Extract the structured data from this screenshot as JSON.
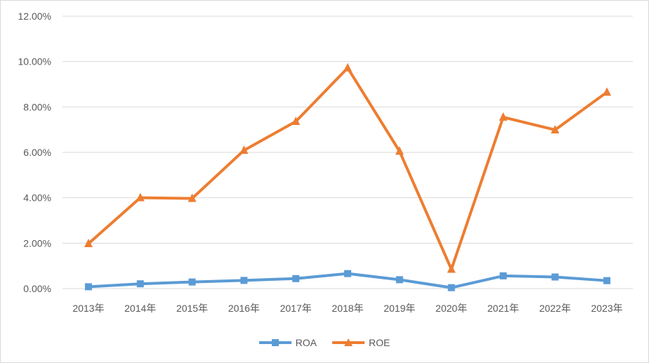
{
  "chart_data": {
    "type": "line",
    "title": "",
    "xlabel": "",
    "ylabel": "",
    "categories": [
      "2013年",
      "2014年",
      "2015年",
      "2016年",
      "2017年",
      "2018年",
      "2019年",
      "2020年",
      "2021年",
      "2022年",
      "2023年"
    ],
    "ylim": [
      0,
      12
    ],
    "yticks": [
      "0.00%",
      "2.00%",
      "4.00%",
      "6.00%",
      "8.00%",
      "10.00%",
      "12.00%"
    ],
    "grid": true,
    "legend_position": "bottom",
    "series": [
      {
        "name": "ROA",
        "color": "#5b9bd5",
        "marker": "square",
        "values": [
          0.08,
          0.21,
          0.29,
          0.36,
          0.44,
          0.66,
          0.39,
          0.04,
          0.56,
          0.51,
          0.35
        ]
      },
      {
        "name": "ROE",
        "color": "#ed7d31",
        "marker": "triangle",
        "values": [
          1.98,
          4.0,
          3.97,
          6.09,
          7.36,
          9.72,
          6.05,
          0.85,
          7.55,
          6.99,
          8.65
        ]
      }
    ]
  }
}
